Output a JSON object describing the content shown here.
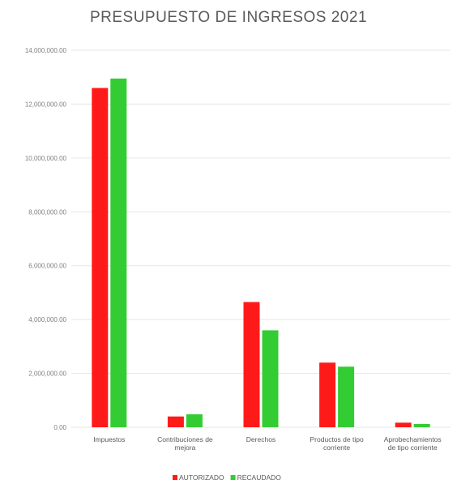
{
  "chart_data": {
    "type": "bar",
    "title": "PRESUPUESTO DE INGRESOS 2021",
    "xlabel": "",
    "ylabel": "",
    "ylim": [
      0,
      14000000
    ],
    "y_ticks": [
      "0.00",
      "2,000,000.00",
      "4,000,000.00",
      "6,000,000.00",
      "8,000,000.00",
      "10,000,000.00",
      "12,000,000.00",
      "14,000,000.00"
    ],
    "y_tick_values": [
      0,
      2000000,
      4000000,
      6000000,
      8000000,
      10000000,
      12000000,
      14000000
    ],
    "categories": [
      [
        "Impuestos"
      ],
      [
        "Contribuciones de",
        "mejora"
      ],
      [
        "Derechos"
      ],
      [
        "Productos de tipo",
        "corriente"
      ],
      [
        "Aprobechamientos",
        "de tipo corriente"
      ]
    ],
    "series": [
      {
        "name": "AUTORIZADO",
        "color": "#ff1a1a",
        "values": [
          12600000,
          400000,
          4650000,
          2400000,
          170000
        ]
      },
      {
        "name": "RECAUDADO",
        "color": "#33cc33",
        "values": [
          12950000,
          480000,
          3600000,
          2250000,
          120000
        ]
      }
    ],
    "grid": true,
    "legend_position": "bottom"
  }
}
